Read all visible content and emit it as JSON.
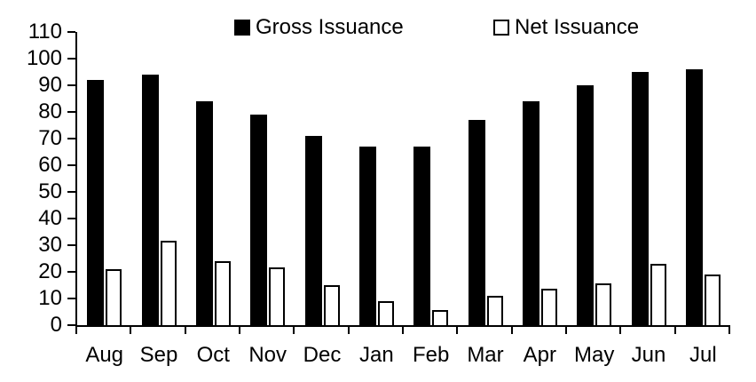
{
  "chart_data": {
    "type": "bar",
    "title": "",
    "xlabel": "",
    "ylabel": "",
    "categories": [
      "Aug",
      "Sep",
      "Oct",
      "Nov",
      "Dec",
      "Jan",
      "Feb",
      "Mar",
      "Apr",
      "May",
      "Jun",
      "Jul"
    ],
    "series": [
      {
        "name": "Gross Issuance",
        "style": "solid-black",
        "values": [
          92,
          94,
          84,
          79,
          71,
          67,
          67,
          77,
          84,
          90,
          95,
          96
        ]
      },
      {
        "name": "Net Issuance",
        "style": "white-outlined",
        "values": [
          21,
          31.5,
          24,
          21.5,
          15,
          9,
          5.5,
          11,
          13.5,
          15.5,
          23,
          19
        ]
      }
    ],
    "ylim": [
      0,
      110
    ],
    "yticks": [
      0,
      10,
      20,
      30,
      40,
      50,
      60,
      70,
      80,
      90,
      100,
      110
    ],
    "grid": "off",
    "legend_position": "top-center"
  },
  "colors": {
    "background": "#ffffff",
    "axis": "#000000",
    "gross_fill": "#000000",
    "net_fill": "#ffffff",
    "net_stroke": "#000000",
    "text": "#000000"
  }
}
